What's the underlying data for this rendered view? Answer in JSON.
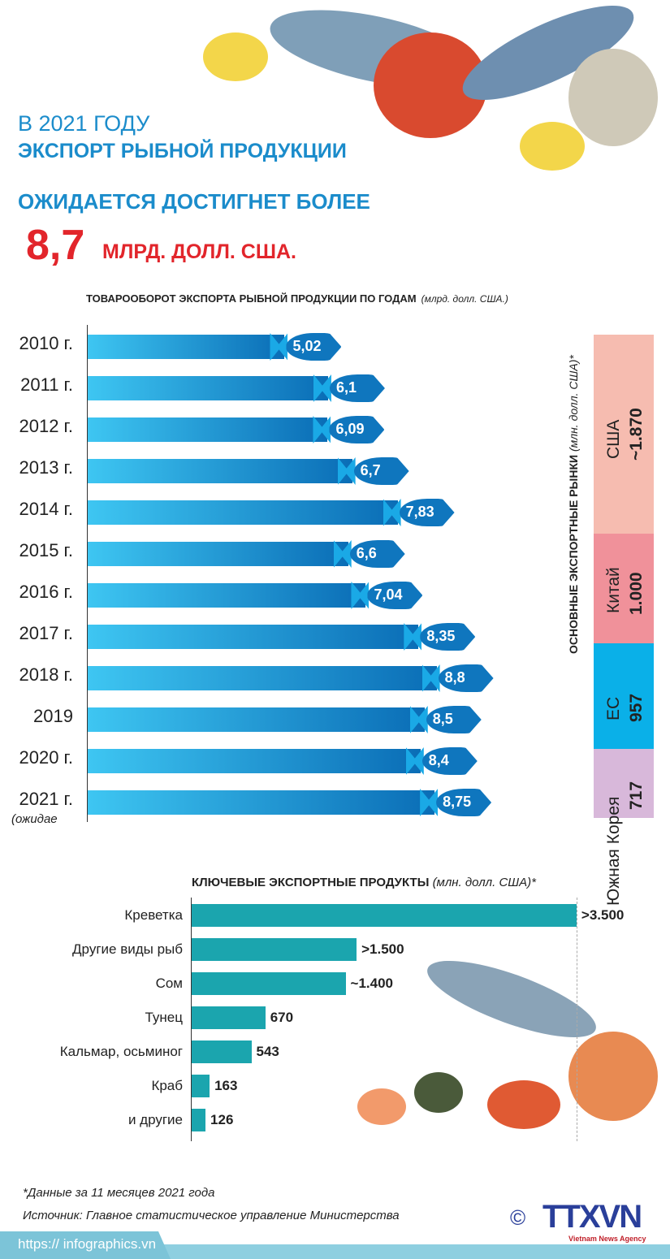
{
  "header": {
    "line1": "В 2021 ГОДУ",
    "line2": "ЭКСПОРТ РЫБНОЙ ПРОДУКЦИИ",
    "line3": "ОЖИДАЕТСЯ ДОСТИГНЕТ БОЛЕЕ",
    "big_value": "8,7",
    "big_unit": "МЛРД. ДОЛЛ. США."
  },
  "colors": {
    "title_blue": "#1b8ccb",
    "accent_red": "#e2252b",
    "bar_blue": "#0f76be",
    "bar_teal": "#1ba5ae"
  },
  "chart_data": [
    {
      "type": "bar",
      "orientation": "horizontal",
      "title": "ТОВАРООБОРОТ ЭКСПОРТА РЫБНОЙ ПРОДУКЦИИ ПО ГОДАМ",
      "unit": "(млрд. долл. США.)",
      "categories": [
        "2010 г.",
        "2011 г.",
        "2012 г.",
        "2013 г.",
        "2014 г.",
        "2015 г.",
        "2016 г.",
        "2017 г.",
        "2018 г.",
        "2019",
        "2020 г.",
        "2021 г."
      ],
      "values": [
        5.02,
        6.1,
        6.09,
        6.7,
        7.83,
        6.6,
        7.04,
        8.35,
        8.8,
        8.5,
        8.4,
        8.75
      ],
      "labels": [
        "5,02",
        "6,1",
        "6,09",
        "6,7",
        "7,83",
        "6,6",
        "7,04",
        "8,35",
        "8,8",
        "8,5",
        "8,4",
        "8,75"
      ],
      "note": "(ожидае"
    },
    {
      "type": "bar",
      "orientation": "stacked-vertical",
      "title": "ОСНОВНЫЕ ЭКСПОРТНЫЕ РЫНКИ",
      "unit": "(млн. долл. США)*",
      "categories": [
        "США",
        "Китай",
        "ЕС",
        "Южная Корея"
      ],
      "values": [
        1870,
        1000,
        957,
        717
      ],
      "labels": [
        "~1.870",
        "1.000",
        "957",
        "717"
      ],
      "colors": [
        "#f6bcb0",
        "#f0919a",
        "#0ab0e8",
        "#d8b8da"
      ]
    },
    {
      "type": "bar",
      "orientation": "horizontal",
      "title": "КЛЮЧЕВЫЕ ЭКСПОРТНЫЕ ПРОДУКТЫ",
      "unit": "(млн. долл. США)*",
      "categories": [
        "Креветка",
        "Другие виды рыб",
        "Сом",
        "Тунец",
        "Кальмар, осьминог",
        "Краб",
        "и другие"
      ],
      "values": [
        3500,
        1500,
        1400,
        670,
        543,
        163,
        126
      ],
      "labels": [
        ">3.500",
        ">1.500",
        "~1.400",
        "670",
        "543",
        "163",
        "126"
      ]
    }
  ],
  "footer": {
    "note": "*Данные за 11 месяцев 2021 года",
    "source": "Источник: Главное статистическое управление Министерства",
    "url": "https:// infographics.vn",
    "logo": "TTXVN",
    "logo_sub": "Vietnam News Agency",
    "copyright": "©"
  }
}
